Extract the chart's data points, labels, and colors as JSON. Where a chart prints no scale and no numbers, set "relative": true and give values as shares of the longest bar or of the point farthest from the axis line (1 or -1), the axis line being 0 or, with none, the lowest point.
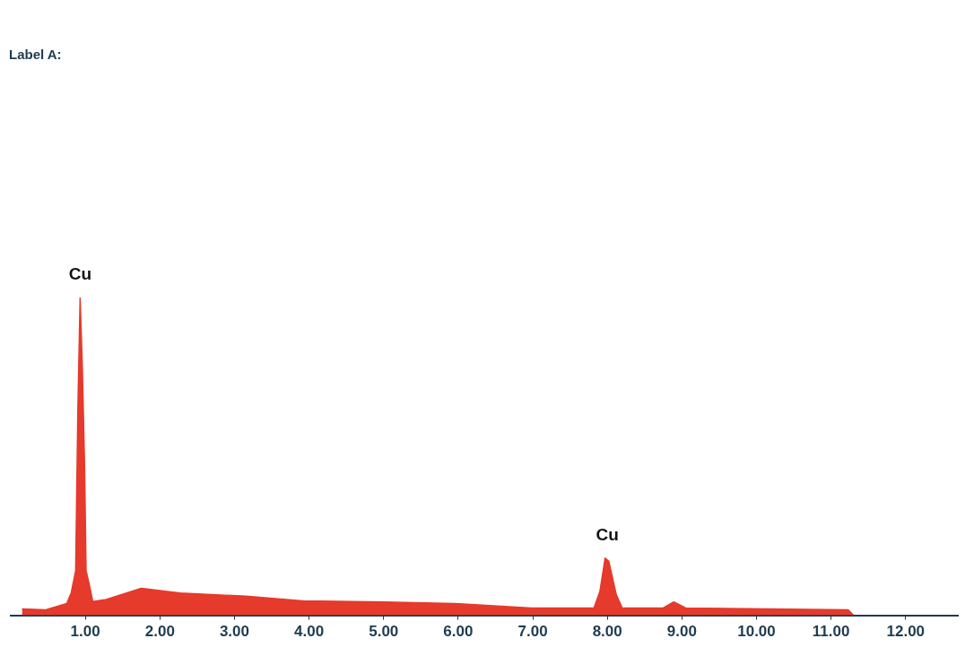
{
  "chart_data": {
    "type": "area",
    "title": "Label A:",
    "relative": true,
    "color": "#e53a2c",
    "tick_labels": "x",
    "x": [
      0.15,
      0.47,
      0.75,
      0.81,
      0.87,
      0.9,
      0.93,
      0.96,
      0.99,
      1.01,
      1.05,
      1.1,
      1.28,
      1.75,
      2.27,
      3.15,
      3.95,
      4.15,
      5.0,
      5.95,
      6.98,
      7.82,
      7.9,
      7.97,
      8.02,
      8.12,
      8.2,
      8.75,
      8.89,
      9.05,
      11.23,
      11.3
    ],
    "values": [
      0.02,
      0.017,
      0.037,
      0.07,
      0.14,
      0.65,
      1.0,
      0.78,
      0.47,
      0.14,
      0.1,
      0.043,
      0.05,
      0.085,
      0.07,
      0.06,
      0.045,
      0.045,
      0.042,
      0.037,
      0.023,
      0.023,
      0.075,
      0.18,
      0.17,
      0.065,
      0.023,
      0.023,
      0.042,
      0.023,
      0.017,
      0
    ],
    "xlim": [
      0,
      12.7
    ],
    "xticks": [
      {
        "value": 1,
        "label": "1.00"
      },
      {
        "value": 2,
        "label": "2.00"
      },
      {
        "value": 3,
        "label": "3.00"
      },
      {
        "value": 4,
        "label": "4.00"
      },
      {
        "value": 5,
        "label": "5.00"
      },
      {
        "value": 6,
        "label": "6.00"
      },
      {
        "value": 7,
        "label": "7.00"
      },
      {
        "value": 8,
        "label": "8.00"
      },
      {
        "value": 9,
        "label": "9.00"
      },
      {
        "value": 10,
        "label": "10.00"
      },
      {
        "value": 11,
        "label": "11.00"
      },
      {
        "value": 12,
        "label": "12.00"
      }
    ],
    "annotations": [
      {
        "text": "Cu",
        "x": 0.93,
        "y": 1.0
      },
      {
        "text": "Cu",
        "x": 8.0,
        "y": 0.18
      }
    ]
  }
}
